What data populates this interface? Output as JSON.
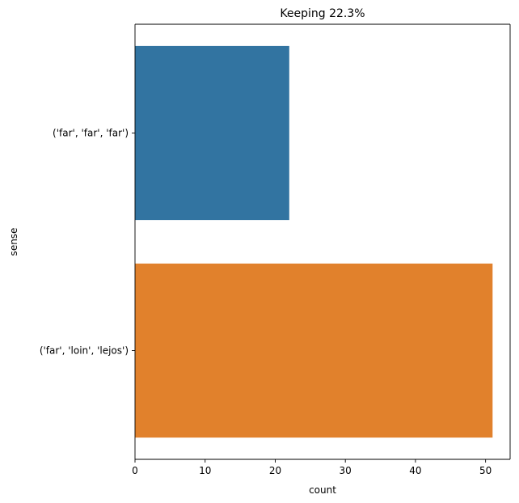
{
  "chart_data": {
    "type": "bar",
    "orientation": "horizontal",
    "title": "Keeping 22.3%",
    "xlabel": "count",
    "ylabel": "sense",
    "categories": [
      "('far', 'far', 'far')",
      "('far', 'loin', 'lejos')"
    ],
    "values": [
      22,
      51
    ],
    "colors": [
      "#3274a1",
      "#e1812c"
    ],
    "xlim": [
      0,
      53.5
    ],
    "xticks": [
      0,
      10,
      20,
      30,
      40,
      50
    ],
    "grid": false,
    "legend": "none"
  }
}
